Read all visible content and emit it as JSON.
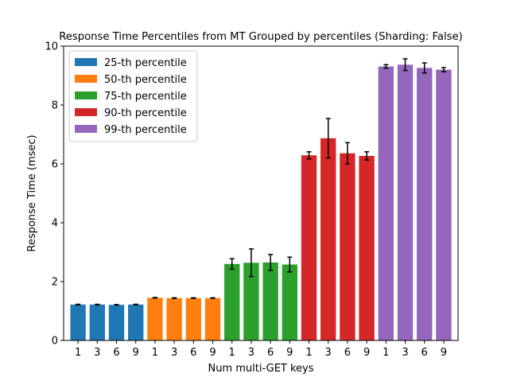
{
  "chart_data": {
    "type": "bar",
    "title": "Response Time Percentiles from MT Grouped by percentiles (Sharding: False)",
    "xlabel": "Num multi-GET keys",
    "ylabel": "Response Time (msec)",
    "ylim": [
      0,
      10
    ],
    "yticks": [
      "0",
      "2",
      "4",
      "6",
      "8",
      "10"
    ],
    "grid": false,
    "legend_position": "upper-left",
    "categories": [
      "1",
      "3",
      "6",
      "9"
    ],
    "series": [
      {
        "name": "25-th percentile",
        "color": "#1f77b4",
        "values": [
          1.22,
          1.22,
          1.21,
          1.22
        ],
        "errors": [
          0.01,
          0.01,
          0.01,
          0.01
        ]
      },
      {
        "name": "50-th percentile",
        "color": "#ff7f0e",
        "values": [
          1.45,
          1.44,
          1.44,
          1.44
        ],
        "errors": [
          0.01,
          0.01,
          0.01,
          0.01
        ]
      },
      {
        "name": "75-th percentile",
        "color": "#2ca02c",
        "values": [
          2.6,
          2.64,
          2.65,
          2.58
        ],
        "errors": [
          0.18,
          0.47,
          0.27,
          0.25
        ]
      },
      {
        "name": "90-th percentile",
        "color": "#d62728",
        "values": [
          6.29,
          6.87,
          6.36,
          6.27
        ],
        "errors": [
          0.12,
          0.67,
          0.36,
          0.14
        ]
      },
      {
        "name": "99-th percentile",
        "color": "#9467bd",
        "values": [
          9.31,
          9.37,
          9.26,
          9.2
        ],
        "errors": [
          0.06,
          0.2,
          0.17,
          0.07
        ]
      }
    ]
  }
}
